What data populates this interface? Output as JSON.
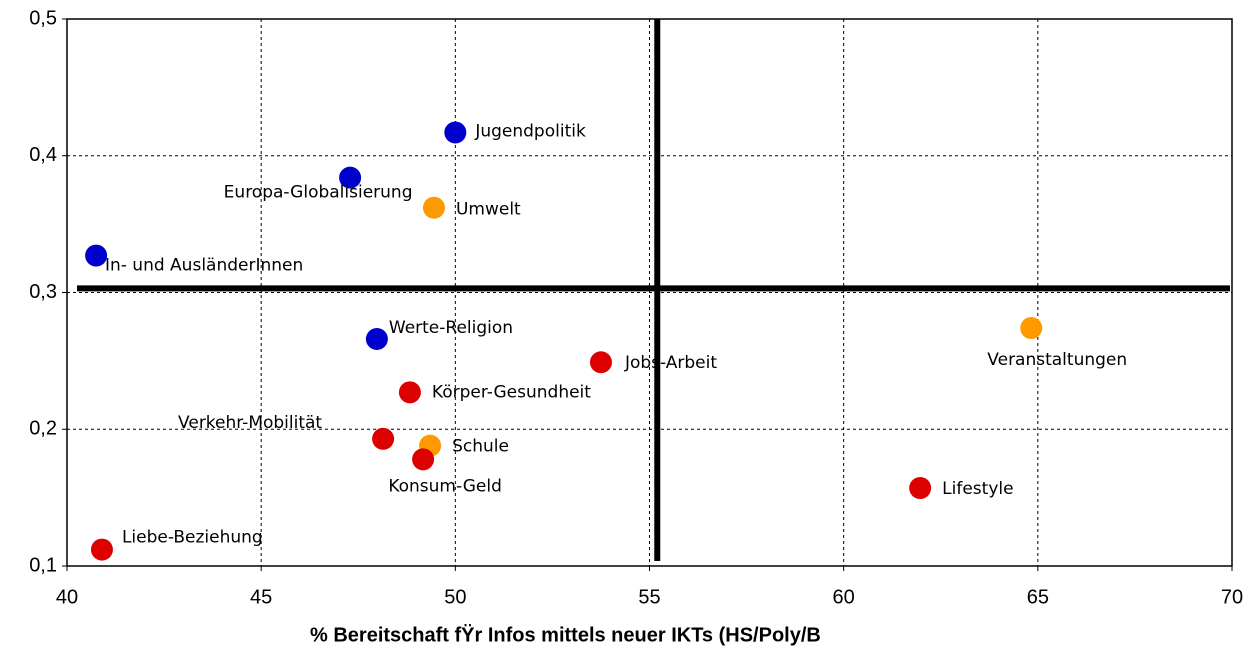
{
  "chart_data": {
    "type": "scatter",
    "x_label": "% Bereitschaft fŸr Infos mittels neuer IKTs (HS/Poly/B",
    "labels": [
      "Jugendpolitik",
      "Europa-Globalisierung",
      "Umwelt",
      "In- und AusländerInnen",
      "Werte-Religion",
      "Jobs-Arbeit",
      "Veranstaltungen",
      "Körper-Gesundheit",
      "Verkehr-Mobilität",
      "Schule",
      "Konsum-Geld",
      "Lifestyle",
      "Liebe-Beziehung"
    ],
    "x": [
      50.0,
      47.29,
      49.45,
      40.75,
      47.98,
      53.75,
      64.83,
      48.83,
      48.14,
      49.35,
      49.17,
      61.97,
      40.9
    ],
    "values": [
      0.417,
      0.384,
      0.362,
      0.327,
      0.266,
      0.249,
      0.274,
      0.227,
      0.193,
      0.188,
      0.178,
      0.157,
      0.112
    ],
    "colors": [
      "#0000cc",
      "#0000cc",
      "#ff9900",
      "#0000cc",
      "#0000cc",
      "#dd0000",
      "#ff9900",
      "#dd0000",
      "#dd0000",
      "#ff9900",
      "#dd0000",
      "#dd0000",
      "#dd0000"
    ],
    "reference_lines": {
      "x": 55.2,
      "y": 0.303
    },
    "xlim": [
      40,
      70
    ],
    "xticks": [
      40,
      45,
      50,
      55,
      60,
      65,
      70
    ],
    "ylim": [
      0.1,
      0.5
    ],
    "yticks": [
      {
        "value": 0.1,
        "label": "0,1"
      },
      {
        "value": 0.2,
        "label": "0,2"
      },
      {
        "value": 0.3,
        "label": "0,3"
      },
      {
        "value": 0.4,
        "label": "0,4"
      },
      {
        "value": 0.5,
        "label": "0,5"
      }
    ],
    "grid": true
  }
}
